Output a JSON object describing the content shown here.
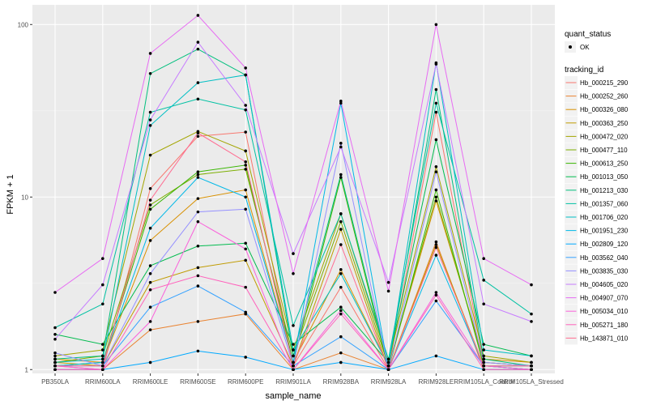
{
  "chart_data": {
    "type": "line",
    "xlabel": "sample_name",
    "ylabel": "FPKM + 1",
    "y_scale": "log10",
    "ylim": [
      0.95,
      130
    ],
    "y_ticks": [
      1,
      10,
      100
    ],
    "y_tick_labels": [
      "1",
      "10",
      "100"
    ],
    "categories": [
      "PB350LA",
      "RRIM600LA",
      "RRIM600LE",
      "RRIM600SE",
      "RRIM600PE",
      "RRIM901LA",
      "RRIM928BA",
      "RRIM928LA",
      "RRIM928LE",
      "RRIM105LA_Control",
      "RRIM105LA_Stressed"
    ],
    "grid": true,
    "legend": {
      "position": "right",
      "shape_title": "quant_status",
      "shape_entries": [
        "OK"
      ],
      "color_title": "tracking_id"
    },
    "series": [
      {
        "name": "Hb_000215_290",
        "color": "#F8766D",
        "values": [
          1.05,
          1.0,
          11.2,
          22.5,
          23.8,
          1.05,
          3.0,
          1.0,
          31.0,
          1.1,
          1.05
        ]
      },
      {
        "name": "Hb_000252_260",
        "color": "#EA8331",
        "values": [
          1.0,
          1.0,
          1.7,
          1.9,
          2.1,
          1.0,
          1.25,
          1.0,
          5.5,
          1.0,
          1.0
        ]
      },
      {
        "name": "Hb_000326_080",
        "color": "#D89000",
        "values": [
          1.15,
          1.1,
          5.6,
          9.8,
          11.0,
          1.1,
          3.8,
          1.05,
          9.5,
          1.15,
          1.1
        ]
      },
      {
        "name": "Hb_000363_250",
        "color": "#C09B00",
        "values": [
          1.1,
          1.05,
          3.2,
          3.9,
          4.3,
          1.05,
          6.5,
          1.0,
          5.3,
          1.05,
          1.05
        ]
      },
      {
        "name": "Hb_000472_020",
        "color": "#A3A500",
        "values": [
          1.2,
          1.3,
          17.5,
          24.0,
          18.5,
          1.3,
          8.0,
          1.1,
          15.0,
          1.2,
          1.1
        ]
      },
      {
        "name": "Hb_000477_110",
        "color": "#7CAE00",
        "values": [
          1.1,
          1.2,
          9.0,
          13.5,
          14.5,
          1.2,
          7.2,
          1.05,
          10.0,
          1.1,
          1.05
        ]
      },
      {
        "name": "Hb_000613_250",
        "color": "#39B600",
        "values": [
          1.05,
          1.1,
          8.5,
          14.0,
          15.3,
          1.1,
          13.0,
          1.0,
          11.0,
          1.05,
          1.0
        ]
      },
      {
        "name": "Hb_001013_050",
        "color": "#00BB4E",
        "values": [
          1.6,
          1.4,
          4.0,
          5.2,
          5.4,
          1.4,
          2.3,
          1.1,
          21.5,
          1.4,
          1.2
        ]
      },
      {
        "name": "Hb_001213_030",
        "color": "#00BF7D",
        "values": [
          1.15,
          1.2,
          52.0,
          72.0,
          51.0,
          1.2,
          13.5,
          1.05,
          42.0,
          1.15,
          1.05
        ]
      },
      {
        "name": "Hb_001357_060",
        "color": "#00C1A3",
        "values": [
          1.75,
          2.4,
          31.0,
          37.0,
          32.0,
          1.8,
          8.0,
          1.15,
          35.0,
          3.3,
          2.1
        ]
      },
      {
        "name": "Hb_001706_020",
        "color": "#00BFC4",
        "values": [
          1.1,
          1.15,
          26.0,
          46.0,
          51.0,
          1.3,
          3.6,
          1.05,
          60.0,
          1.3,
          1.2
        ]
      },
      {
        "name": "Hb_001951_230",
        "color": "#00B8E7",
        "values": [
          1.05,
          1.1,
          6.6,
          13.0,
          10.0,
          1.1,
          35.0,
          1.0,
          4.6,
          1.05,
          1.0
        ]
      },
      {
        "name": "Hb_002809_120",
        "color": "#00A9FF",
        "values": [
          1.0,
          1.0,
          1.1,
          1.28,
          1.18,
          1.0,
          1.1,
          1.0,
          1.2,
          1.0,
          1.0
        ]
      },
      {
        "name": "Hb_003562_040",
        "color": "#35A2FF",
        "values": [
          1.05,
          1.05,
          2.3,
          3.05,
          2.15,
          1.05,
          1.55,
          1.0,
          2.5,
          1.05,
          1.05
        ]
      },
      {
        "name": "Hb_003835_030",
        "color": "#9590FF",
        "values": [
          1.25,
          1.05,
          3.6,
          8.2,
          8.5,
          1.05,
          20.5,
          1.0,
          14.0,
          1.1,
          1.05
        ]
      },
      {
        "name": "Hb_004605_020",
        "color": "#C77CFF",
        "values": [
          1.5,
          3.1,
          28.0,
          79.0,
          34.0,
          4.7,
          19.5,
          3.2,
          59.0,
          2.4,
          1.9
        ]
      },
      {
        "name": "Hb_004907_070",
        "color": "#E76BF3",
        "values": [
          2.8,
          4.4,
          68.0,
          113.0,
          56.0,
          3.6,
          36.0,
          2.85,
          100.0,
          4.4,
          3.1
        ]
      },
      {
        "name": "Hb_005034_010",
        "color": "#FA62DB",
        "values": [
          1.05,
          1.0,
          1.9,
          7.2,
          5.0,
          1.0,
          2.2,
          1.0,
          2.8,
          1.05,
          1.0
        ]
      },
      {
        "name": "Hb_005271_180",
        "color": "#FF62BC",
        "values": [
          1.0,
          1.0,
          2.9,
          3.5,
          3.0,
          1.0,
          2.1,
          1.0,
          2.7,
          1.0,
          1.0
        ]
      },
      {
        "name": "Hb_143871_010",
        "color": "#FF6C91",
        "values": [
          1.05,
          1.05,
          9.6,
          23.5,
          16.0,
          1.05,
          5.3,
          1.0,
          5.1,
          1.05,
          1.05
        ]
      }
    ]
  }
}
